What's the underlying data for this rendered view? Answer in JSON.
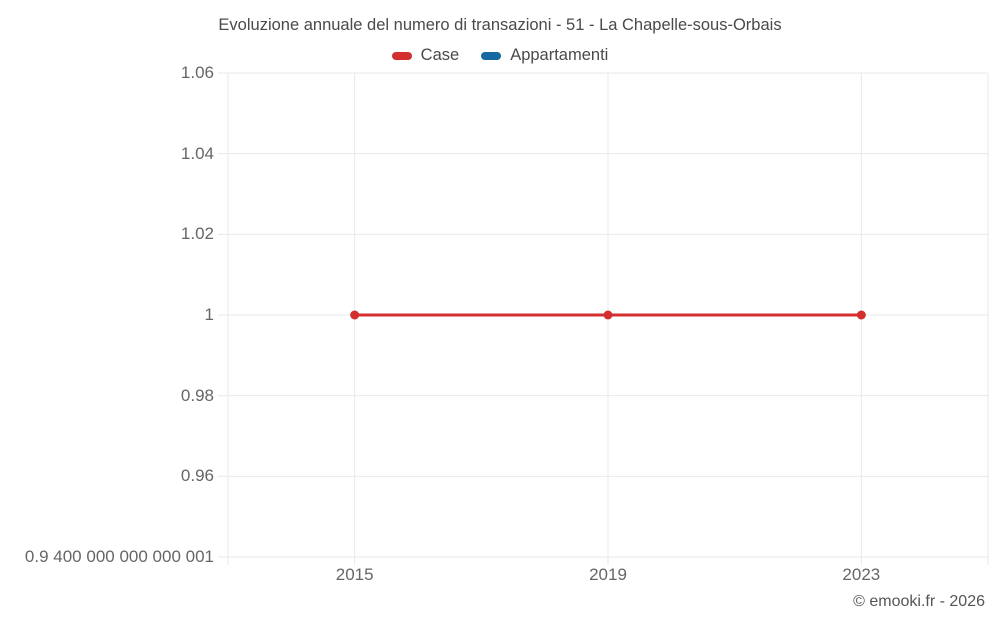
{
  "chart_data": {
    "type": "line",
    "title": "Evoluzione annuale del numero di transazioni - 51 - La Chapelle-sous-Orbais",
    "x": [
      2015,
      2019,
      2023
    ],
    "series": [
      {
        "name": "Case",
        "color": "#d32f2f",
        "values": [
          1,
          1,
          1
        ]
      },
      {
        "name": "Appartamenti",
        "color": "#1669a0",
        "values": []
      }
    ],
    "xlim": [
      2013,
      2025
    ],
    "ylim": [
      0.94,
      1.06
    ],
    "x_ticks": [
      {
        "value": 2015,
        "label": "2015"
      },
      {
        "value": 2019,
        "label": "2019"
      },
      {
        "value": 2023,
        "label": "2023"
      }
    ],
    "y_ticks": [
      {
        "value": 1.06,
        "label": "1.06"
      },
      {
        "value": 1.04,
        "label": "1.04"
      },
      {
        "value": 1.02,
        "label": "1.02"
      },
      {
        "value": 1.0,
        "label": "1"
      },
      {
        "value": 0.98,
        "label": "0.98"
      },
      {
        "value": 0.96,
        "label": "0.96"
      },
      {
        "value": 0.94,
        "label": "0.9 400 000 000 000 001"
      }
    ],
    "grid": true,
    "legend_position": "top",
    "colors": {
      "grid": "#e9e9e9",
      "tick_text": "#666666",
      "title_text": "#4a4a4a"
    }
  },
  "footer": {
    "credit": "© emooki.fr - 2026"
  }
}
